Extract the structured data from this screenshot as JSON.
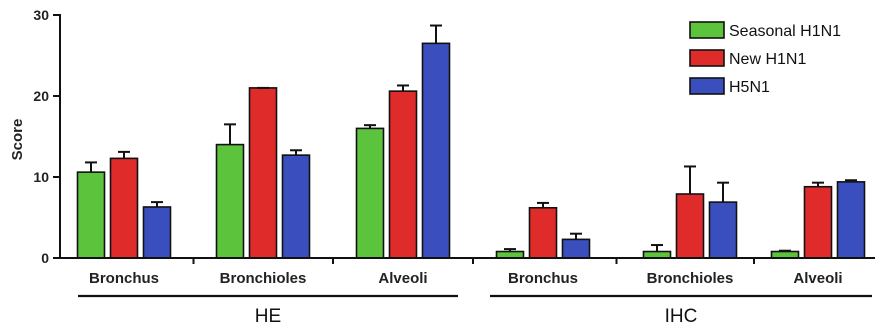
{
  "chart_data": {
    "type": "bar",
    "ylabel": "Score",
    "ylim": [
      0,
      30
    ],
    "yticks": [
      "0",
      "10",
      "20",
      "30"
    ],
    "categories": [
      "Bronchus",
      "Bronchioles",
      "Alveoli",
      "Bronchus",
      "Bronchioles",
      "Alveoli"
    ],
    "groups": [
      {
        "label": "HE",
        "categories": [
          0,
          1,
          2
        ]
      },
      {
        "label": "IHC",
        "categories": [
          3,
          4,
          5
        ]
      }
    ],
    "series": [
      {
        "name": "Seasonal H1N1",
        "color": "#5cc43c",
        "values": [
          10.6,
          14.0,
          16.0,
          0.8,
          0.8,
          0.8
        ],
        "errors": [
          1.2,
          2.5,
          0.4,
          0.3,
          0.8,
          0.1
        ]
      },
      {
        "name": "New H1N1",
        "color": "#e02b2b",
        "values": [
          12.3,
          21.0,
          20.6,
          6.2,
          7.9,
          8.8
        ],
        "errors": [
          0.8,
          0.0,
          0.7,
          0.6,
          3.4,
          0.5
        ]
      },
      {
        "name": "H5N1",
        "color": "#3a4ebd",
        "values": [
          6.3,
          12.7,
          26.5,
          2.3,
          6.9,
          9.4
        ],
        "errors": [
          0.6,
          0.6,
          2.2,
          0.7,
          2.4,
          0.2
        ]
      }
    ],
    "legend_position": "top-right",
    "grid": false
  }
}
